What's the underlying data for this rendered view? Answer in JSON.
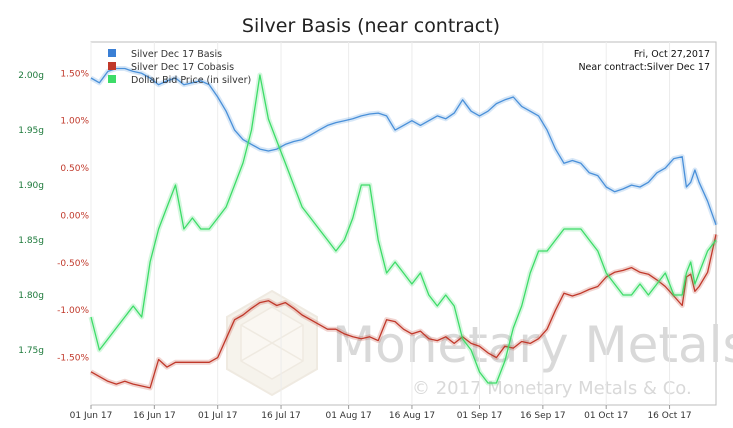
{
  "chart_data": {
    "type": "line",
    "title": "Silver Basis (near contract)",
    "info": {
      "date": "Fri, Oct 27,2017",
      "contract": "Near contract:Silver Dec 17"
    },
    "watermark": {
      "brand": "Monetary Metals",
      "copyright": "© 2017 Monetary Metals & Co."
    },
    "legend_position": "top-left",
    "x_ticks": [
      "01 Jun 17",
      "16 Jun 17",
      "01 Jul 17",
      "16 Jul 17",
      "01 Aug 17",
      "16 Aug 17",
      "01 Sep 17",
      "16 Sep 17",
      "01 Oct 17",
      "16 Oct 17"
    ],
    "x_tick_days": [
      0,
      15,
      30,
      45,
      61,
      76,
      92,
      107,
      122,
      137
    ],
    "x_range_days": [
      0,
      148
    ],
    "left_axis": {
      "ticks": [
        "2.00g",
        "1.95g",
        "1.90g",
        "1.85g",
        "1.80g",
        "1.75g"
      ],
      "tick_values": [
        2.0,
        1.95,
        1.9,
        1.85,
        1.8,
        1.75
      ],
      "range": [
        1.7,
        2.03
      ]
    },
    "right_axis": {
      "ticks": [
        "1.50%",
        "1.00%",
        "0.50%",
        "0.00%",
        "-0.50%",
        "-1.00%",
        "-1.50%"
      ],
      "tick_values": [
        1.5,
        1.0,
        0.5,
        0.0,
        -0.5,
        -1.0,
        -1.5
      ],
      "range": [
        -2.0,
        1.83
      ]
    },
    "series": [
      {
        "name": "Silver Dec 17 Basis",
        "color": "#4a90d9",
        "axis": "right",
        "points": [
          [
            0,
            1.45
          ],
          [
            2,
            1.4
          ],
          [
            4,
            1.52
          ],
          [
            6,
            1.55
          ],
          [
            8,
            1.55
          ],
          [
            10,
            1.52
          ],
          [
            12,
            1.5
          ],
          [
            14,
            1.45
          ],
          [
            16,
            1.38
          ],
          [
            18,
            1.42
          ],
          [
            20,
            1.45
          ],
          [
            22,
            1.38
          ],
          [
            24,
            1.4
          ],
          [
            26,
            1.42
          ],
          [
            28,
            1.38
          ],
          [
            30,
            1.25
          ],
          [
            32,
            1.1
          ],
          [
            34,
            0.9
          ],
          [
            36,
            0.8
          ],
          [
            38,
            0.75
          ],
          [
            40,
            0.7
          ],
          [
            42,
            0.68
          ],
          [
            44,
            0.7
          ],
          [
            46,
            0.75
          ],
          [
            48,
            0.78
          ],
          [
            50,
            0.8
          ],
          [
            52,
            0.85
          ],
          [
            54,
            0.9
          ],
          [
            56,
            0.95
          ],
          [
            58,
            0.98
          ],
          [
            60,
            1.0
          ],
          [
            62,
            1.02
          ],
          [
            64,
            1.05
          ],
          [
            66,
            1.07
          ],
          [
            68,
            1.08
          ],
          [
            70,
            1.05
          ],
          [
            72,
            0.9
          ],
          [
            74,
            0.95
          ],
          [
            76,
            1.0
          ],
          [
            78,
            0.95
          ],
          [
            80,
            1.0
          ],
          [
            82,
            1.05
          ],
          [
            84,
            1.02
          ],
          [
            86,
            1.08
          ],
          [
            88,
            1.22
          ],
          [
            90,
            1.1
          ],
          [
            92,
            1.05
          ],
          [
            94,
            1.1
          ],
          [
            96,
            1.18
          ],
          [
            98,
            1.22
          ],
          [
            100,
            1.25
          ],
          [
            102,
            1.15
          ],
          [
            104,
            1.1
          ],
          [
            106,
            1.05
          ],
          [
            108,
            0.9
          ],
          [
            110,
            0.7
          ],
          [
            112,
            0.55
          ],
          [
            114,
            0.58
          ],
          [
            116,
            0.55
          ],
          [
            118,
            0.45
          ],
          [
            120,
            0.42
          ],
          [
            122,
            0.3
          ],
          [
            124,
            0.25
          ],
          [
            126,
            0.28
          ],
          [
            128,
            0.32
          ],
          [
            130,
            0.3
          ],
          [
            132,
            0.35
          ],
          [
            134,
            0.45
          ],
          [
            136,
            0.5
          ],
          [
            138,
            0.6
          ],
          [
            140,
            0.62
          ],
          [
            141,
            0.3
          ],
          [
            142,
            0.35
          ],
          [
            143,
            0.48
          ],
          [
            144,
            0.35
          ],
          [
            146,
            0.15
          ],
          [
            148,
            -0.1
          ]
        ]
      },
      {
        "name": "Silver Dec 17 Cobasis",
        "color": "#c0392b",
        "axis": "right",
        "points": [
          [
            0,
            -1.65
          ],
          [
            2,
            -1.7
          ],
          [
            4,
            -1.75
          ],
          [
            6,
            -1.78
          ],
          [
            8,
            -1.75
          ],
          [
            10,
            -1.78
          ],
          [
            12,
            -1.8
          ],
          [
            14,
            -1.82
          ],
          [
            16,
            -1.52
          ],
          [
            18,
            -1.6
          ],
          [
            20,
            -1.55
          ],
          [
            22,
            -1.55
          ],
          [
            24,
            -1.55
          ],
          [
            26,
            -1.55
          ],
          [
            28,
            -1.55
          ],
          [
            30,
            -1.5
          ],
          [
            32,
            -1.3
          ],
          [
            34,
            -1.1
          ],
          [
            36,
            -1.05
          ],
          [
            38,
            -0.98
          ],
          [
            40,
            -0.92
          ],
          [
            42,
            -0.9
          ],
          [
            44,
            -0.95
          ],
          [
            46,
            -0.92
          ],
          [
            48,
            -0.98
          ],
          [
            50,
            -1.05
          ],
          [
            52,
            -1.1
          ],
          [
            54,
            -1.15
          ],
          [
            56,
            -1.2
          ],
          [
            58,
            -1.2
          ],
          [
            60,
            -1.25
          ],
          [
            62,
            -1.28
          ],
          [
            64,
            -1.3
          ],
          [
            66,
            -1.28
          ],
          [
            68,
            -1.32
          ],
          [
            70,
            -1.1
          ],
          [
            72,
            -1.12
          ],
          [
            74,
            -1.2
          ],
          [
            76,
            -1.25
          ],
          [
            78,
            -1.22
          ],
          [
            80,
            -1.3
          ],
          [
            82,
            -1.32
          ],
          [
            84,
            -1.28
          ],
          [
            86,
            -1.35
          ],
          [
            88,
            -1.28
          ],
          [
            90,
            -1.35
          ],
          [
            92,
            -1.38
          ],
          [
            94,
            -1.45
          ],
          [
            96,
            -1.5
          ],
          [
            98,
            -1.38
          ],
          [
            100,
            -1.4
          ],
          [
            102,
            -1.33
          ],
          [
            104,
            -1.35
          ],
          [
            106,
            -1.3
          ],
          [
            108,
            -1.2
          ],
          [
            110,
            -1.0
          ],
          [
            112,
            -0.82
          ],
          [
            114,
            -0.85
          ],
          [
            116,
            -0.82
          ],
          [
            118,
            -0.78
          ],
          [
            120,
            -0.75
          ],
          [
            122,
            -0.65
          ],
          [
            124,
            -0.6
          ],
          [
            126,
            -0.58
          ],
          [
            128,
            -0.55
          ],
          [
            130,
            -0.6
          ],
          [
            132,
            -0.62
          ],
          [
            134,
            -0.68
          ],
          [
            136,
            -0.75
          ],
          [
            138,
            -0.85
          ],
          [
            140,
            -0.95
          ],
          [
            141,
            -0.65
          ],
          [
            142,
            -0.62
          ],
          [
            143,
            -0.8
          ],
          [
            144,
            -0.75
          ],
          [
            146,
            -0.6
          ],
          [
            148,
            -0.2
          ]
        ]
      },
      {
        "name": "Dollar Bid Price (in silver)",
        "color": "#3ddc68",
        "axis": "left",
        "points": [
          [
            0,
            1.78
          ],
          [
            2,
            1.75
          ],
          [
            4,
            1.76
          ],
          [
            6,
            1.77
          ],
          [
            8,
            1.78
          ],
          [
            10,
            1.79
          ],
          [
            12,
            1.78
          ],
          [
            14,
            1.83
          ],
          [
            16,
            1.86
          ],
          [
            18,
            1.88
          ],
          [
            20,
            1.9
          ],
          [
            22,
            1.86
          ],
          [
            24,
            1.87
          ],
          [
            26,
            1.86
          ],
          [
            28,
            1.86
          ],
          [
            30,
            1.87
          ],
          [
            32,
            1.88
          ],
          [
            34,
            1.9
          ],
          [
            36,
            1.92
          ],
          [
            38,
            1.95
          ],
          [
            40,
            2.0
          ],
          [
            42,
            1.96
          ],
          [
            44,
            1.94
          ],
          [
            46,
            1.92
          ],
          [
            48,
            1.9
          ],
          [
            50,
            1.88
          ],
          [
            52,
            1.87
          ],
          [
            54,
            1.86
          ],
          [
            56,
            1.85
          ],
          [
            58,
            1.84
          ],
          [
            60,
            1.85
          ],
          [
            62,
            1.87
          ],
          [
            64,
            1.9
          ],
          [
            66,
            1.9
          ],
          [
            68,
            1.85
          ],
          [
            70,
            1.82
          ],
          [
            72,
            1.83
          ],
          [
            74,
            1.82
          ],
          [
            76,
            1.81
          ],
          [
            78,
            1.82
          ],
          [
            80,
            1.8
          ],
          [
            82,
            1.79
          ],
          [
            84,
            1.8
          ],
          [
            86,
            1.79
          ],
          [
            88,
            1.76
          ],
          [
            90,
            1.75
          ],
          [
            92,
            1.73
          ],
          [
            94,
            1.72
          ],
          [
            96,
            1.72
          ],
          [
            98,
            1.74
          ],
          [
            100,
            1.77
          ],
          [
            102,
            1.79
          ],
          [
            104,
            1.82
          ],
          [
            106,
            1.84
          ],
          [
            108,
            1.84
          ],
          [
            110,
            1.85
          ],
          [
            112,
            1.86
          ],
          [
            114,
            1.86
          ],
          [
            116,
            1.86
          ],
          [
            118,
            1.85
          ],
          [
            120,
            1.84
          ],
          [
            122,
            1.82
          ],
          [
            124,
            1.81
          ],
          [
            126,
            1.8
          ],
          [
            128,
            1.8
          ],
          [
            130,
            1.81
          ],
          [
            132,
            1.8
          ],
          [
            134,
            1.81
          ],
          [
            136,
            1.82
          ],
          [
            138,
            1.8
          ],
          [
            140,
            1.8
          ],
          [
            141,
            1.82
          ],
          [
            142,
            1.83
          ],
          [
            143,
            1.81
          ],
          [
            144,
            1.82
          ],
          [
            146,
            1.84
          ],
          [
            148,
            1.85
          ]
        ]
      }
    ]
  }
}
